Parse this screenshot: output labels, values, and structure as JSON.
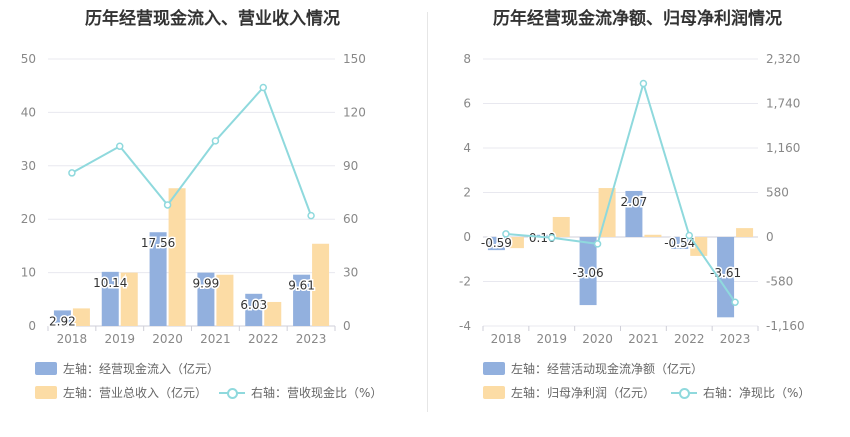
{
  "colors": {
    "bar1": "#92b0de",
    "bar2": "#fcdca5",
    "line": "#8fd9dd",
    "grid": "#e8e8ef",
    "axisText": "#888888"
  },
  "chart_data": [
    {
      "type": "bar",
      "title": "历年经营现金流入、营业收入情况",
      "categories": [
        "2018",
        "2019",
        "2020",
        "2021",
        "2022",
        "2023"
      ],
      "series": [
        {
          "name": "左轴：经营现金流入（亿元）",
          "axis": "left",
          "type": "bar",
          "color": "#92b0de",
          "values": [
            2.92,
            10.14,
            17.56,
            9.99,
            6.03,
            9.61
          ],
          "labels": [
            "2.92",
            "10.14",
            "17.56",
            "9.99",
            "6.03",
            "9.61"
          ]
        },
        {
          "name": "左轴：营业总收入（亿元）",
          "axis": "left",
          "type": "bar",
          "color": "#fcdca5",
          "values": [
            3.3,
            10.0,
            25.8,
            9.6,
            4.5,
            15.4
          ]
        },
        {
          "name": "右轴：营收现金比（%）",
          "axis": "right",
          "type": "line",
          "color": "#8fd9dd",
          "values": [
            86,
            101,
            68,
            104,
            134,
            62
          ]
        }
      ],
      "ylim_left": [
        0,
        50
      ],
      "yticks_left": [
        "0",
        "10",
        "20",
        "30",
        "40",
        "50"
      ],
      "ylim_right": [
        0,
        150
      ],
      "yticks_right": [
        "0",
        "30",
        "60",
        "90",
        "120",
        "150"
      ],
      "grid": true,
      "legend_position": "bottom-left"
    },
    {
      "type": "bar",
      "title": "历年经营现金流净额、归母净利润情况",
      "categories": [
        "2018",
        "2019",
        "2020",
        "2021",
        "2022",
        "2023"
      ],
      "series": [
        {
          "name": "左轴：经营活动现金流净额（亿元）",
          "axis": "left",
          "type": "bar",
          "color": "#92b0de",
          "values": [
            -0.59,
            0.1,
            -3.06,
            2.07,
            -0.54,
            -3.61
          ],
          "labels": [
            "-0.59",
            "0.10",
            "-3.06",
            "2.07",
            "-0.54",
            "-3.61"
          ]
        },
        {
          "name": "左轴：归母净利润（亿元）",
          "axis": "left",
          "type": "bar",
          "color": "#fcdca5",
          "values": [
            -0.5,
            0.9,
            2.2,
            0.1,
            -0.85,
            0.4
          ]
        },
        {
          "name": "右轴：净现比（%）",
          "axis": "right",
          "type": "line",
          "color": "#8fd9dd",
          "values": [
            40,
            -10,
            -90,
            2000,
            20,
            -850
          ]
        }
      ],
      "ylim_left": [
        -4,
        8
      ],
      "yticks_left": [
        "-4",
        "-2",
        "0",
        "2",
        "4",
        "6",
        "8"
      ],
      "ylim_right": [
        -1160,
        2320
      ],
      "yticks_right": [
        "-1,160",
        "-580",
        "0",
        "580",
        "1,160",
        "1,740",
        "2,320"
      ],
      "grid": true,
      "legend_position": "bottom-left"
    }
  ]
}
